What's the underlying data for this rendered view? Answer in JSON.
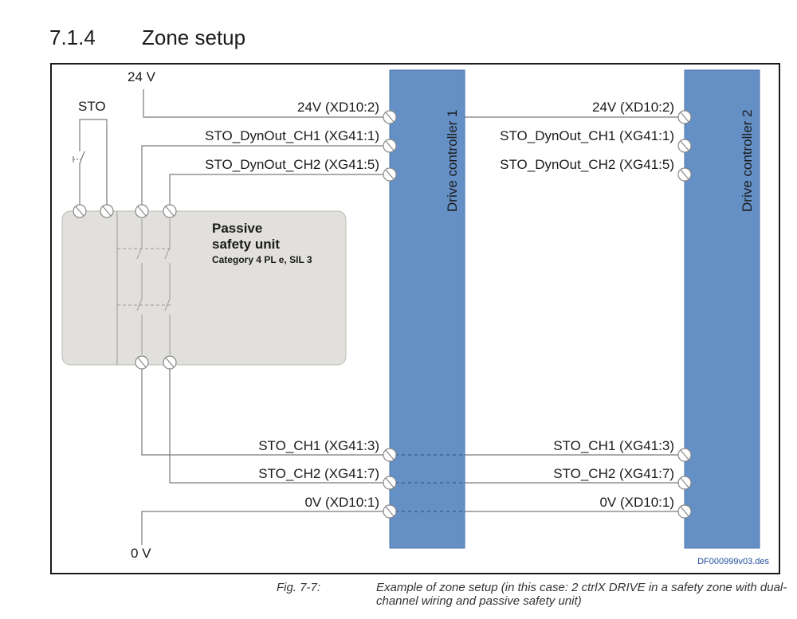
{
  "heading": {
    "number": "7.1.4",
    "title": "Zone setup"
  },
  "diagram": {
    "supply_top": "24 V",
    "supply_bottom": "0 V",
    "sto_label": "STO",
    "safety_unit": {
      "line1": "Passive",
      "line2": "safety unit",
      "line3": "Category 4 PL e, SIL 3"
    },
    "controllers": [
      {
        "name": "Drive controller 1"
      },
      {
        "name": "Drive controller 2"
      }
    ],
    "terminals_top": [
      "24V (XD10:2)",
      "STO_DynOut_CH1 (XG41:1)",
      "STO_DynOut_CH2 (XG41:5)"
    ],
    "terminals_bottom": [
      "STO_CH1 (XG41:3)",
      "STO_CH2 (XG41:7)",
      "0V (XD10:1)"
    ],
    "reference": "DF000999v03.des"
  },
  "caption": {
    "label": "Fig. 7-7:",
    "text": "Example of zone setup (in this case: 2 ctrlX DRIVE in a safety zone with dual-channel wiring and passive safety unit)"
  },
  "colors": {
    "controller": "#6590c6",
    "safety_unit": "#e2e0dc",
    "line": "#7a7a7a"
  }
}
